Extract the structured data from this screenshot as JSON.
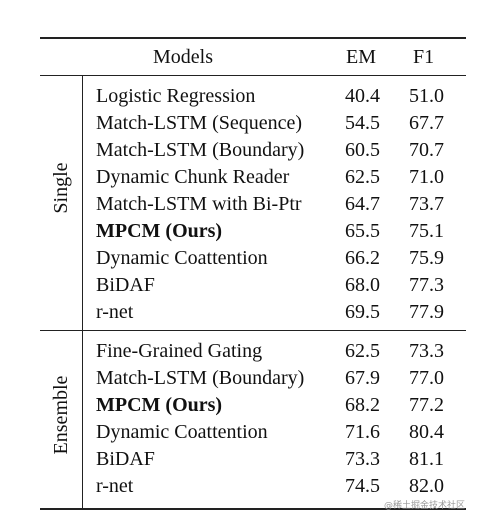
{
  "table": {
    "headers": {
      "models": "Models",
      "em": "EM",
      "f1": "F1"
    },
    "groups": [
      {
        "label": "Single",
        "rows": [
          {
            "model": "Logistic Regression",
            "em": "40.4",
            "f1": "51.0",
            "bold": false
          },
          {
            "model": "Match-LSTM (Sequence)",
            "em": "54.5",
            "f1": "67.7",
            "bold": false
          },
          {
            "model": "Match-LSTM (Boundary)",
            "em": "60.5",
            "f1": "70.7",
            "bold": false
          },
          {
            "model": "Dynamic Chunk Reader",
            "em": "62.5",
            "f1": "71.0",
            "bold": false
          },
          {
            "model": "Match-LSTM with Bi-Ptr",
            "em": "64.7",
            "f1": "73.7",
            "bold": false
          },
          {
            "model": "MPCM (Ours)",
            "em": "65.5",
            "f1": "75.1",
            "bold": true
          },
          {
            "model": "Dynamic Coattention",
            "em": "66.2",
            "f1": "75.9",
            "bold": false
          },
          {
            "model": "BiDAF",
            "em": "68.0",
            "f1": "77.3",
            "bold": false
          },
          {
            "model": "r-net",
            "em": "69.5",
            "f1": "77.9",
            "bold": false
          }
        ]
      },
      {
        "label": "Ensemble",
        "rows": [
          {
            "model": "Fine-Grained Gating",
            "em": "62.5",
            "f1": "73.3",
            "bold": false
          },
          {
            "model": "Match-LSTM (Boundary)",
            "em": "67.9",
            "f1": "77.0",
            "bold": false
          },
          {
            "model": "MPCM (Ours)",
            "em": "68.2",
            "f1": "77.2",
            "bold": true
          },
          {
            "model": "Dynamic Coattention",
            "em": "71.6",
            "f1": "80.4",
            "bold": false
          },
          {
            "model": "BiDAF",
            "em": "73.3",
            "f1": "81.1",
            "bold": false
          },
          {
            "model": "r-net",
            "em": "74.5",
            "f1": "82.0",
            "bold": false
          }
        ]
      }
    ]
  },
  "watermark": "@稀土掘金技术社区"
}
